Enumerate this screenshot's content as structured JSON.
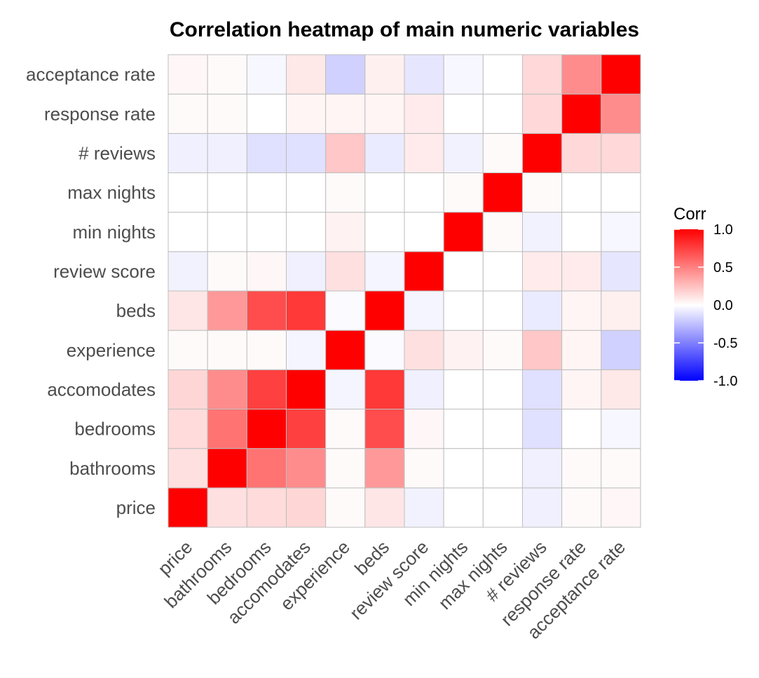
{
  "chart_data": {
    "type": "heatmap",
    "title": "Correlation heatmap of main numeric variables",
    "variables": [
      "price",
      "bathrooms",
      "bedrooms",
      "accomodates",
      "experience",
      "beds",
      "review score",
      "min nights",
      "max nights",
      "# reviews",
      "response rate",
      "acceptance rate"
    ],
    "matrix": [
      [
        1.0,
        0.12,
        0.14,
        0.16,
        0.02,
        0.1,
        -0.05,
        0.0,
        0.0,
        -0.06,
        0.02,
        0.03
      ],
      [
        0.12,
        1.0,
        0.55,
        0.45,
        0.02,
        0.4,
        0.02,
        0.0,
        0.0,
        -0.06,
        0.02,
        0.02
      ],
      [
        0.14,
        0.55,
        1.0,
        0.75,
        0.02,
        0.7,
        0.03,
        0.0,
        0.0,
        -0.12,
        0.0,
        -0.03
      ],
      [
        0.16,
        0.45,
        0.75,
        1.0,
        -0.04,
        0.78,
        -0.06,
        0.0,
        0.0,
        -0.12,
        0.04,
        0.09
      ],
      [
        0.02,
        0.02,
        0.02,
        -0.04,
        1.0,
        -0.02,
        0.12,
        0.05,
        0.02,
        0.22,
        0.04,
        -0.18
      ],
      [
        0.1,
        0.4,
        0.7,
        0.78,
        -0.02,
        1.0,
        -0.04,
        0.0,
        0.0,
        -0.08,
        0.04,
        0.06
      ],
      [
        -0.05,
        0.02,
        0.03,
        -0.06,
        0.12,
        -0.04,
        1.0,
        0.0,
        0.0,
        0.08,
        0.08,
        -0.1
      ],
      [
        0.0,
        0.0,
        0.0,
        0.0,
        0.05,
        0.0,
        0.0,
        1.0,
        0.02,
        -0.05,
        0.0,
        -0.03
      ],
      [
        0.0,
        0.0,
        0.0,
        0.0,
        0.02,
        0.0,
        0.0,
        0.02,
        1.0,
        0.02,
        0.0,
        0.0
      ],
      [
        -0.06,
        -0.06,
        -0.12,
        -0.12,
        0.22,
        -0.08,
        0.08,
        -0.05,
        0.02,
        1.0,
        0.15,
        0.15
      ],
      [
        0.02,
        0.02,
        0.0,
        0.04,
        0.04,
        0.04,
        0.08,
        0.0,
        0.0,
        0.15,
        1.0,
        0.45
      ],
      [
        0.03,
        0.02,
        -0.03,
        0.09,
        -0.18,
        0.06,
        -0.1,
        -0.03,
        0.0,
        0.15,
        0.45,
        1.0
      ]
    ],
    "legend": {
      "title": "Corr",
      "ticks": [
        1.0,
        0.5,
        0.0,
        -0.5,
        -1.0
      ],
      "tick_labels": [
        "1.0",
        "0.5",
        "0.0",
        "-0.5",
        "-1.0"
      ],
      "colors": {
        "low": "#0000ff",
        "mid": "#ffffff",
        "high": "#ff0000"
      },
      "range": [
        -1,
        1
      ],
      "position": "right"
    },
    "grid_color": "#bebebe"
  }
}
